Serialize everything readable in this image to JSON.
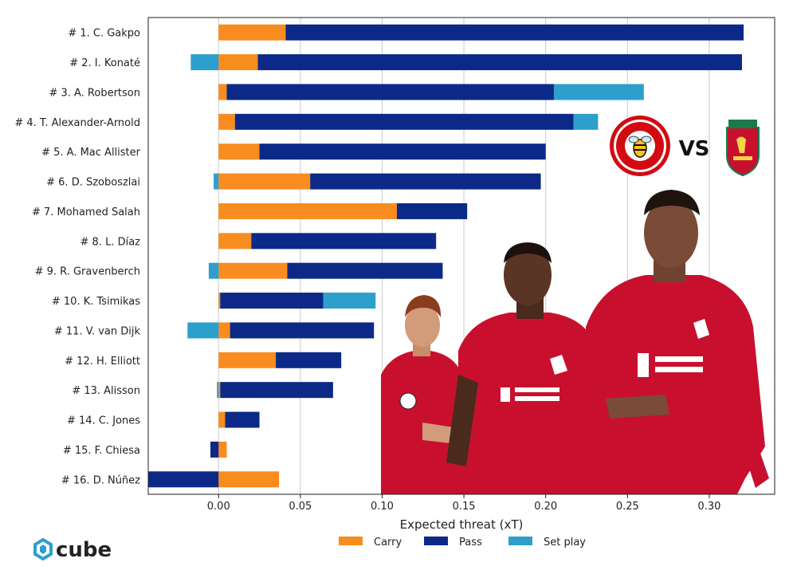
{
  "chart_data": {
    "type": "bar",
    "orientation": "horizontal",
    "stacked": true,
    "xlabel": "Expected threat (xT)",
    "xlim": [
      -0.043,
      0.34
    ],
    "xticks": [
      "0.00",
      "0.05",
      "0.10",
      "0.15",
      "0.20",
      "0.25",
      "0.30"
    ],
    "grid": "vertical",
    "legend_position": "bottom",
    "categories": [
      "# 1.  C. Gakpo",
      "# 2.  I. Konaté",
      "# 3.  A. Robertson",
      "# 4.  T. Alexander-Arnold",
      "# 5.  A. Mac Allister",
      "# 6.  D. Szoboszlai",
      "# 7.  Mohamed Salah",
      "# 8.  L. Díaz",
      "# 9.  R. Gravenberch",
      "# 10.  K. Tsimikas",
      "# 11.  V. van Dijk",
      "# 12.  H. Elliott",
      "# 13.  Alisson",
      "# 14.  C. Jones",
      "# 15.  F. Chiesa",
      "# 16.  D. Núñez"
    ],
    "series": [
      {
        "name": "Carry",
        "color": "#f98c1f",
        "values": [
          0.041,
          0.024,
          0.005,
          0.01,
          0.025,
          0.056,
          0.109,
          0.02,
          0.042,
          0.001,
          0.007,
          0.035,
          0.001,
          0.004,
          0.005,
          0.037
        ]
      },
      {
        "name": "Pass",
        "color": "#0c2987",
        "values": [
          0.28,
          0.296,
          0.2,
          0.207,
          0.175,
          0.141,
          0.043,
          0.113,
          0.095,
          0.063,
          0.088,
          0.04,
          0.069,
          0.021,
          -0.005,
          -0.043
        ]
      },
      {
        "name": "Set play",
        "color": "#2d9fcc",
        "values": [
          0.0,
          -0.017,
          0.055,
          0.015,
          0.0,
          -0.003,
          0.0,
          0.0,
          -0.006,
          0.032,
          -0.019,
          0.0,
          -0.001,
          0.0,
          0.0,
          0.0
        ]
      }
    ]
  },
  "badges": {
    "vs": "VS",
    "home_crest": "BRENTFORD FOOTBALL CLUB",
    "away_crest": "LIVERPOOL FOOTBALL CLUB"
  },
  "brand": {
    "name": "cube",
    "icon": "cube-hexagon-icon",
    "color": "#2d9fcc"
  }
}
